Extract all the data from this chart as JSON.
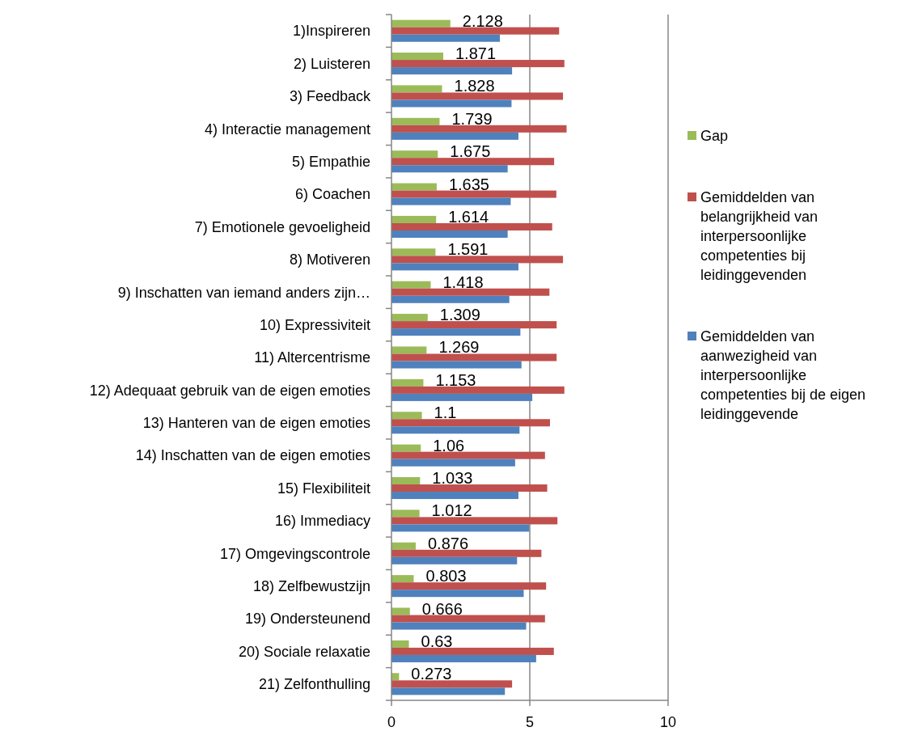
{
  "chart_data": {
    "type": "bar",
    "orientation": "horizontal",
    "categories": [
      "1)Inspireren",
      "2) Luisteren",
      "3) Feedback",
      "4) Interactie management",
      "5) Empathie",
      "6) Coachen",
      "7) Emotionele gevoeligheid",
      "8) Motiveren",
      "9) Inschatten van iemand anders zijn…",
      "10) Expressiviteit",
      "11) Altercentrisme",
      "12) Adequaat gebruik van de eigen emoties",
      "13) Hanteren van de eigen emoties",
      "14) Inschatten van de eigen emoties",
      "15) Flexibiliteit",
      "16) Immediacy",
      "17) Omgevingscontrole",
      "18) Zelfbewustzijn",
      "19) Ondersteunend",
      "20) Sociale relaxatie",
      "21) Zelfonthulling"
    ],
    "series": [
      {
        "name": "Gap",
        "color": "#9bbb59",
        "values": [
          2.128,
          1.871,
          1.828,
          1.739,
          1.675,
          1.635,
          1.614,
          1.591,
          1.418,
          1.309,
          1.269,
          1.153,
          1.1,
          1.06,
          1.033,
          1.012,
          0.876,
          0.803,
          0.666,
          0.63,
          0.273
        ],
        "value_labels": [
          "2.128",
          "1.871",
          "1.828",
          "1.739",
          "1.675",
          "1.635",
          "1.614",
          "1.591",
          "1.418",
          "1.309",
          "1.269",
          "1.153",
          "1.1",
          "1.06",
          "1.033",
          "1.012",
          "0.876",
          "0.803",
          "0.666",
          "0.63",
          "0.273"
        ]
      },
      {
        "name": "Gemiddelden van belangrijkheid van interpersoonlijke competenties bij leidinggevenden",
        "color": "#c0504d",
        "values": [
          6.06,
          6.25,
          6.2,
          6.33,
          5.88,
          5.96,
          5.81,
          6.2,
          5.71,
          5.97,
          5.97,
          6.25,
          5.73,
          5.55,
          5.63,
          6.0,
          5.42,
          5.59,
          5.55,
          5.87,
          4.36
        ]
      },
      {
        "name": "Gemiddelden van aanwezigheid van interpersoonlijke competenties bij de eigen leidinggevende",
        "color": "#4f81bd",
        "values": [
          3.92,
          4.36,
          4.34,
          4.59,
          4.2,
          4.31,
          4.2,
          4.59,
          4.26,
          4.66,
          4.7,
          5.09,
          4.63,
          4.47,
          4.59,
          4.98,
          4.54,
          4.78,
          4.87,
          5.23,
          4.1
        ]
      }
    ],
    "xlim": [
      0,
      10
    ],
    "xticks": [
      0,
      5,
      10
    ],
    "grid": "x",
    "legend": "right"
  }
}
